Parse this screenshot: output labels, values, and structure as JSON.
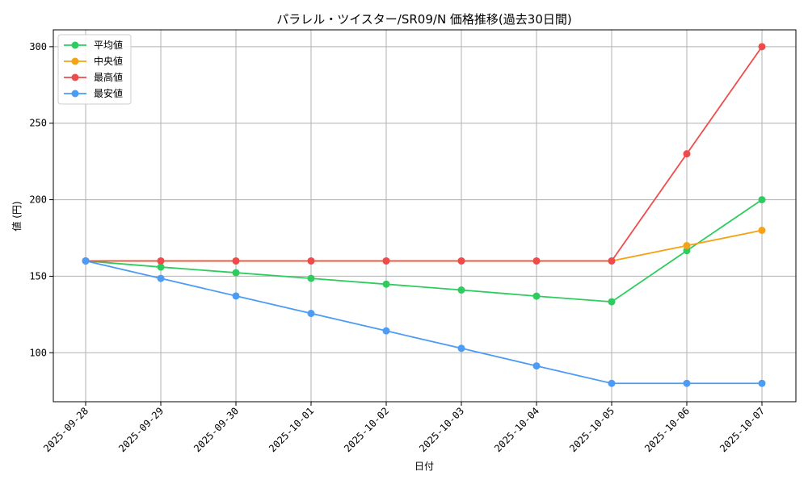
{
  "chart_data": {
    "type": "line",
    "title": "パラレル・ツイスター/SR09/N 価格推移(過去30日間)",
    "xlabel": "日付",
    "ylabel": "値 (円)",
    "categories": [
      "2025-09-28",
      "2025-09-29",
      "2025-09-30",
      "2025-10-01",
      "2025-10-02",
      "2025-10-03",
      "2025-10-04",
      "2025-10-05",
      "2025-10-06",
      "2025-10-07"
    ],
    "ylim": [
      68,
      311
    ],
    "yticks": [
      100,
      150,
      200,
      250,
      300
    ],
    "grid": true,
    "legend_position": "top-left",
    "series": [
      {
        "name": "平均値",
        "color": "#2ecc5f",
        "values": [
          160,
          156,
          152.3,
          148.6,
          144.8,
          141,
          137,
          133.3,
          166.7,
          200
        ]
      },
      {
        "name": "中央値",
        "color": "#f5a214",
        "values": [
          160,
          160,
          160,
          160,
          160,
          160,
          160,
          160,
          170,
          180
        ]
      },
      {
        "name": "最高値",
        "color": "#ee4c4c",
        "values": [
          160,
          160,
          160,
          160,
          160,
          160,
          160,
          160,
          230,
          300
        ]
      },
      {
        "name": "最安値",
        "color": "#4c9bf5",
        "values": [
          160,
          148.6,
          137.1,
          125.7,
          114.3,
          102.9,
          91.4,
          80,
          80,
          80
        ]
      }
    ]
  }
}
